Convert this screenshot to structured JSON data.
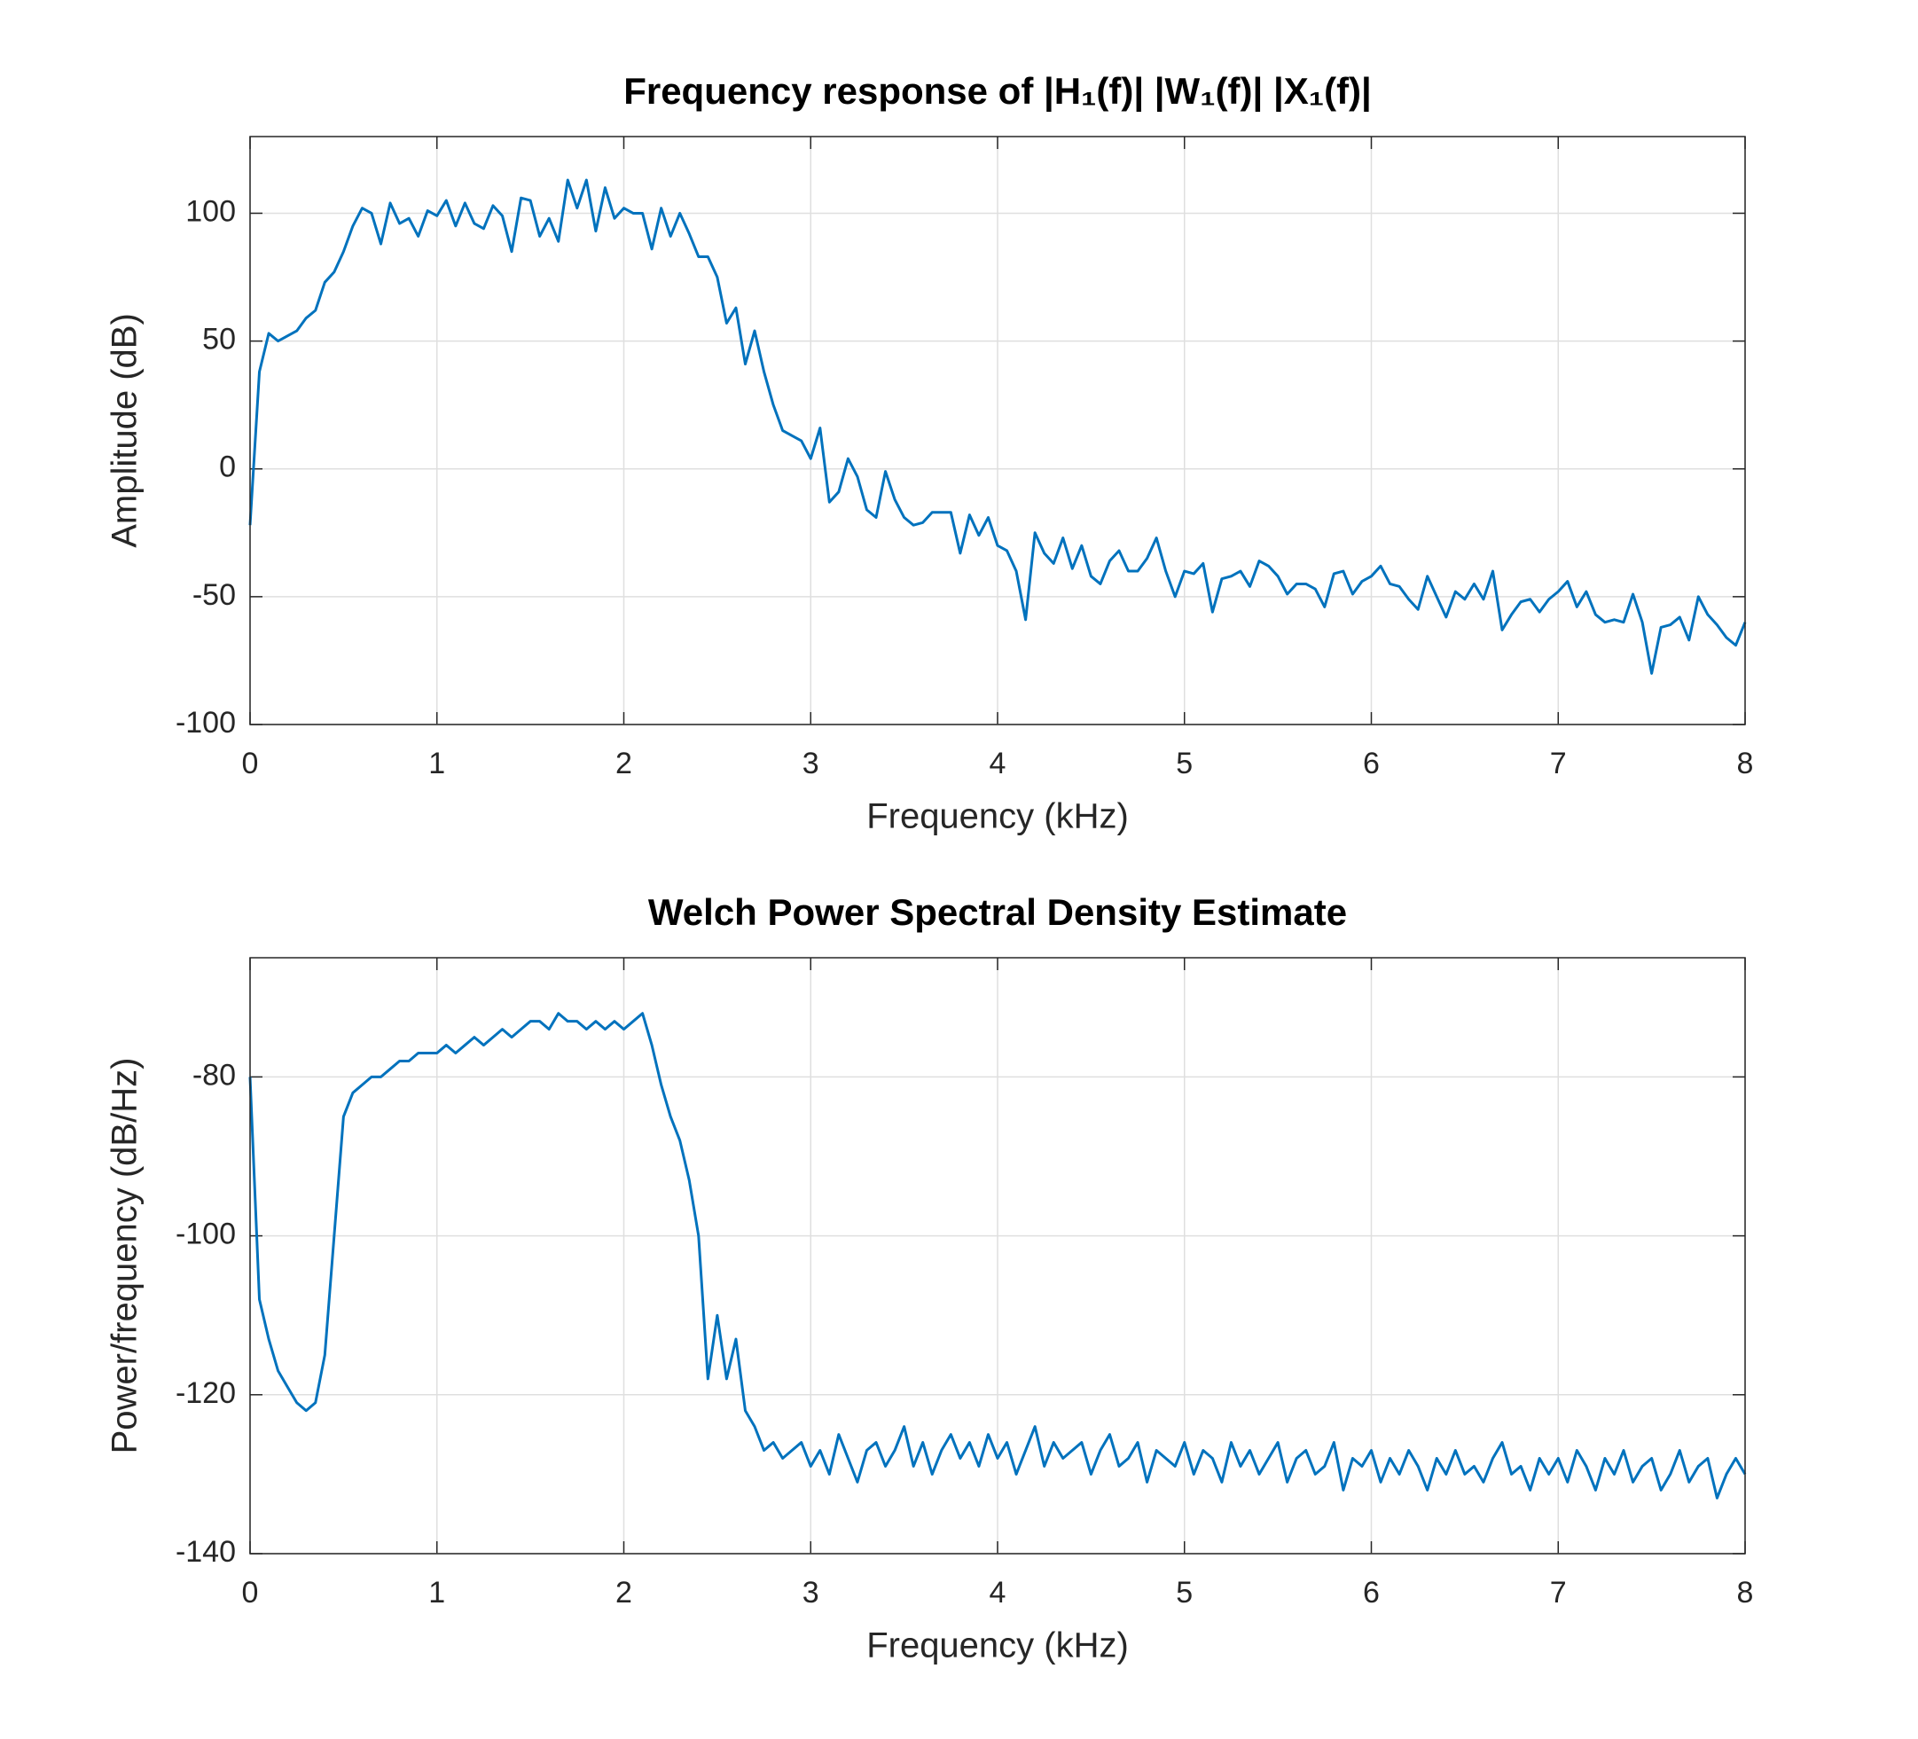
{
  "chart_data": [
    {
      "type": "line",
      "title": "Frequency response of |H₁(f)|  |W₁(f)|  |X₁(f)|",
      "x_label": "Frequency (kHz)",
      "y_label": "Amplitude (dB)",
      "x": [
        0,
        0.05,
        0.1,
        0.15,
        0.2,
        0.25,
        0.3,
        0.35,
        0.4,
        0.45,
        0.5,
        0.55,
        0.6,
        0.65,
        0.7,
        0.75,
        0.8,
        0.85,
        0.9,
        0.95,
        1,
        1.05,
        1.1,
        1.15,
        1.2,
        1.25,
        1.3,
        1.35,
        1.4,
        1.45,
        1.5,
        1.55,
        1.6,
        1.65,
        1.7,
        1.75,
        1.8,
        1.85,
        1.9,
        1.95,
        2,
        2.05,
        2.1,
        2.15,
        2.2,
        2.25,
        2.3,
        2.35,
        2.4,
        2.45,
        2.5,
        2.55,
        2.6,
        2.65,
        2.7,
        2.75,
        2.8,
        2.85,
        2.9,
        2.95,
        3,
        3.05,
        3.1,
        3.15,
        3.2,
        3.25,
        3.3,
        3.35,
        3.4,
        3.45,
        3.5,
        3.55,
        3.6,
        3.65,
        3.7,
        3.75,
        3.8,
        3.85,
        3.9,
        3.95,
        4,
        4.05,
        4.1,
        4.15,
        4.2,
        4.25,
        4.3,
        4.35,
        4.4,
        4.45,
        4.5,
        4.55,
        4.6,
        4.65,
        4.7,
        4.75,
        4.8,
        4.85,
        4.9,
        4.95,
        5,
        5.05,
        5.1,
        5.15,
        5.2,
        5.25,
        5.3,
        5.35,
        5.4,
        5.45,
        5.5,
        5.55,
        5.6,
        5.65,
        5.7,
        5.75,
        5.8,
        5.85,
        5.9,
        5.95,
        6,
        6.05,
        6.1,
        6.15,
        6.2,
        6.25,
        6.3,
        6.35,
        6.4,
        6.45,
        6.5,
        6.55,
        6.6,
        6.65,
        6.7,
        6.75,
        6.8,
        6.85,
        6.9,
        6.95,
        7,
        7.05,
        7.1,
        7.15,
        7.2,
        7.25,
        7.3,
        7.35,
        7.4,
        7.45,
        7.5,
        7.55,
        7.6,
        7.65,
        7.7,
        7.75,
        7.8,
        7.85,
        7.9,
        7.95,
        8
      ],
      "series": [
        {
          "color": "#0072bd",
          "values": [
            -22,
            38,
            53,
            50,
            52,
            54,
            59,
            62,
            73,
            77,
            85,
            95,
            102,
            100,
            88,
            104,
            96,
            98,
            91,
            101,
            99,
            105,
            95,
            104,
            96,
            94,
            103,
            99,
            85,
            106,
            105,
            91,
            98,
            89,
            113,
            102,
            113,
            93,
            110,
            98,
            102,
            100,
            100,
            86,
            102,
            91,
            100,
            92,
            83,
            83,
            75,
            57,
            63,
            41,
            54,
            38,
            25,
            15,
            13,
            11,
            4,
            16,
            -13,
            -9,
            4,
            -3,
            -16,
            -19,
            -1,
            -12,
            -19,
            -22,
            -21,
            -17,
            -17,
            -17,
            -33,
            -18,
            -26,
            -19,
            -30,
            -32,
            -40,
            -59,
            -25,
            -33,
            -37,
            -27,
            -39,
            -30,
            -42,
            -45,
            -36,
            -32,
            -40,
            -40,
            -35,
            -27,
            -40,
            -50,
            -40,
            -41,
            -37,
            -56,
            -43,
            -42,
            -40,
            -46,
            -36,
            -38,
            -42,
            -49,
            -45,
            -45,
            -47,
            -54,
            -41,
            -40,
            -49,
            -44,
            -42,
            -38,
            -45,
            -46,
            -51,
            -55,
            -42,
            -50,
            -58,
            -48,
            -51,
            -45,
            -51,
            -40,
            -63,
            -57,
            -52,
            -51,
            -56,
            -51,
            -48,
            -44,
            -54,
            -48,
            -57,
            -60,
            -59,
            -60,
            -49,
            -60,
            -80,
            -62,
            -61,
            -58,
            -67,
            -50,
            -57,
            -61,
            -66,
            -69,
            -60
          ]
        }
      ],
      "xlim": [
        0,
        8
      ],
      "xticks": [
        0,
        1,
        2,
        3,
        4,
        5,
        6,
        7,
        8
      ],
      "ylim": [
        -100,
        130
      ],
      "yticks": [
        -100,
        -50,
        0,
        50,
        100
      ],
      "grid": true
    },
    {
      "type": "line",
      "title": "Welch Power Spectral Density Estimate",
      "x_label": "Frequency (kHz)",
      "y_label": "Power/frequency (dB/Hz)",
      "x": [
        0,
        0.05,
        0.1,
        0.15,
        0.2,
        0.25,
        0.3,
        0.35,
        0.4,
        0.45,
        0.5,
        0.55,
        0.6,
        0.65,
        0.7,
        0.75,
        0.8,
        0.85,
        0.9,
        0.95,
        1,
        1.05,
        1.1,
        1.15,
        1.2,
        1.25,
        1.3,
        1.35,
        1.4,
        1.45,
        1.5,
        1.55,
        1.6,
        1.65,
        1.7,
        1.75,
        1.8,
        1.85,
        1.9,
        1.95,
        2,
        2.05,
        2.1,
        2.15,
        2.2,
        2.25,
        2.3,
        2.35,
        2.4,
        2.45,
        2.5,
        2.55,
        2.6,
        2.65,
        2.7,
        2.75,
        2.8,
        2.85,
        2.9,
        2.95,
        3,
        3.05,
        3.1,
        3.15,
        3.2,
        3.25,
        3.3,
        3.35,
        3.4,
        3.45,
        3.5,
        3.55,
        3.6,
        3.65,
        3.7,
        3.75,
        3.8,
        3.85,
        3.9,
        3.95,
        4,
        4.05,
        4.1,
        4.15,
        4.2,
        4.25,
        4.3,
        4.35,
        4.4,
        4.45,
        4.5,
        4.55,
        4.6,
        4.65,
        4.7,
        4.75,
        4.8,
        4.85,
        4.9,
        4.95,
        5,
        5.05,
        5.1,
        5.15,
        5.2,
        5.25,
        5.3,
        5.35,
        5.4,
        5.45,
        5.5,
        5.55,
        5.6,
        5.65,
        5.7,
        5.75,
        5.8,
        5.85,
        5.9,
        5.95,
        6,
        6.05,
        6.1,
        6.15,
        6.2,
        6.25,
        6.3,
        6.35,
        6.4,
        6.45,
        6.5,
        6.55,
        6.6,
        6.65,
        6.7,
        6.75,
        6.8,
        6.85,
        6.9,
        6.95,
        7,
        7.05,
        7.1,
        7.15,
        7.2,
        7.25,
        7.3,
        7.35,
        7.4,
        7.45,
        7.5,
        7.55,
        7.6,
        7.65,
        7.7,
        7.75,
        7.8,
        7.85,
        7.9,
        7.95,
        8
      ],
      "series": [
        {
          "color": "#0072bd",
          "values": [
            -80,
            -108,
            -113,
            -117,
            -119,
            -121,
            -122,
            -121,
            -115,
            -100,
            -85,
            -82,
            -81,
            -80,
            -80,
            -79,
            -78,
            -78,
            -77,
            -77,
            -77,
            -76,
            -77,
            -76,
            -75,
            -76,
            -75,
            -74,
            -75,
            -74,
            -73,
            -73,
            -74,
            -72,
            -73,
            -73,
            -74,
            -73,
            -74,
            -73,
            -74,
            -73,
            -72,
            -76,
            -81,
            -85,
            -88,
            -93,
            -100,
            -118,
            -110,
            -118,
            -113,
            -122,
            -124,
            -127,
            -126,
            -128,
            -127,
            -126,
            -129,
            -127,
            -130,
            -125,
            -128,
            -131,
            -127,
            -126,
            -129,
            -127,
            -124,
            -129,
            -126,
            -130,
            -127,
            -125,
            -128,
            -126,
            -129,
            -125,
            -128,
            -126,
            -130,
            -127,
            -124,
            -129,
            -126,
            -128,
            -127,
            -126,
            -130,
            -127,
            -125,
            -129,
            -128,
            -126,
            -131,
            -127,
            -128,
            -129,
            -126,
            -130,
            -127,
            -128,
            -131,
            -126,
            -129,
            -127,
            -130,
            -128,
            -126,
            -131,
            -128,
            -127,
            -130,
            -129,
            -126,
            -132,
            -128,
            -129,
            -127,
            -131,
            -128,
            -130,
            -127,
            -129,
            -132,
            -128,
            -130,
            -127,
            -130,
            -129,
            -131,
            -128,
            -126,
            -130,
            -129,
            -132,
            -128,
            -130,
            -128,
            -131,
            -127,
            -129,
            -132,
            -128,
            -130,
            -127,
            -131,
            -129,
            -128,
            -132,
            -130,
            -127,
            -131,
            -129,
            -128,
            -133,
            -130,
            -128,
            -130
          ]
        }
      ],
      "xlim": [
        0,
        8
      ],
      "xticks": [
        0,
        1,
        2,
        3,
        4,
        5,
        6,
        7,
        8
      ],
      "ylim": [
        -140,
        -65
      ],
      "yticks": [
        -140,
        -120,
        -100,
        -80
      ],
      "grid": true
    }
  ]
}
